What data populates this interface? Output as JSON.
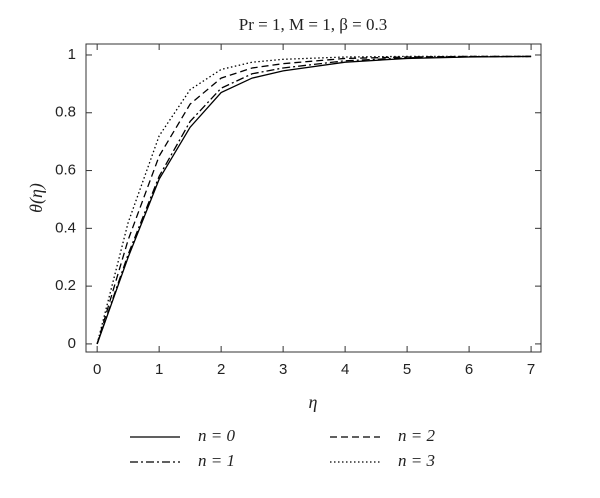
{
  "chart_data": {
    "type": "line",
    "title": "Pr = 1, M = 1, β = 0.3",
    "x_label": "η",
    "y_label": "θ(η)",
    "x": [
      0,
      0.5,
      1,
      1.5,
      2,
      2.5,
      3,
      4,
      5,
      6,
      7
    ],
    "series": [
      {
        "name": "n = 0",
        "color": "#000000",
        "linestyle": "solid",
        "values": [
          0,
          0.3,
          0.57,
          0.75,
          0.87,
          0.92,
          0.945,
          0.975,
          0.988,
          0.993,
          0.995
        ]
      },
      {
        "name": "n = 1",
        "color": "#000000",
        "linestyle": "dashdot",
        "values": [
          0,
          0.31,
          0.58,
          0.77,
          0.885,
          0.935,
          0.955,
          0.98,
          0.99,
          0.994,
          0.995
        ]
      },
      {
        "name": "n = 2",
        "color": "#000000",
        "linestyle": "dashed",
        "values": [
          0,
          0.36,
          0.65,
          0.83,
          0.92,
          0.955,
          0.97,
          0.988,
          0.993,
          0.995,
          0.995
        ]
      },
      {
        "name": "n = 3",
        "color": "#000000",
        "linestyle": "dotted",
        "values": [
          0,
          0.42,
          0.72,
          0.88,
          0.95,
          0.975,
          0.985,
          0.993,
          0.995,
          0.995,
          0.995
        ]
      }
    ],
    "xlim": [
      -0.18,
      7.16
    ],
    "ylim": [
      -0.028,
      1.038
    ],
    "xticks": [
      0,
      1,
      2,
      3,
      4,
      5,
      6,
      7
    ],
    "yticks": [
      0,
      0.2,
      0.4,
      0.6,
      0.8,
      1
    ],
    "grid": false,
    "legend_position": "bottom"
  }
}
